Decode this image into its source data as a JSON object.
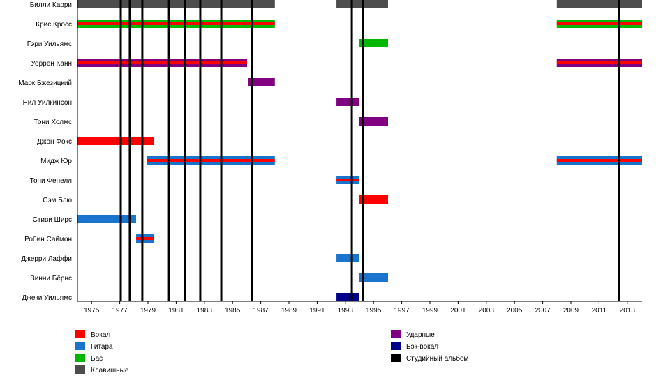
{
  "chart_data": {
    "type": "timeline",
    "title": "",
    "xlim": [
      1974.0,
      2014.05
    ],
    "x_ticks": [
      "1975",
      "1977",
      "1979",
      "1981",
      "1983",
      "1985",
      "1987",
      "1989",
      "1991",
      "1993",
      "1995",
      "1997",
      "1999",
      "2001",
      "2003",
      "2005",
      "2007",
      "2009",
      "2011",
      "2013"
    ],
    "colors": {
      "vocal": "#ff0000",
      "guitar": "#1874cd",
      "bass": "#00b800",
      "keys": "#4d4d4d",
      "drums": "#800080",
      "backing": "#00008b",
      "album": "#000000"
    },
    "members": [
      {
        "name": "Билли Карри",
        "spans": [
          {
            "from": 1974.0,
            "to": 1988.0,
            "role": "keys"
          },
          {
            "from": 1992.37,
            "to": 1996.03,
            "role": "keys"
          },
          {
            "from": 2008.0,
            "to": 2014.05,
            "role": "keys"
          }
        ]
      },
      {
        "name": "Крис Кросс",
        "spans": [
          {
            "from": 1974.0,
            "to": 1988.0,
            "role": "bass",
            "stripe": "vocal"
          },
          {
            "from": 2008.0,
            "to": 2014.05,
            "role": "bass",
            "stripe": "vocal"
          }
        ]
      },
      {
        "name": "Гэри Уильямс",
        "spans": [
          {
            "from": 1994.0,
            "to": 1996.03,
            "role": "bass"
          }
        ]
      },
      {
        "name": "Уоррен Канн",
        "spans": [
          {
            "from": 1974.0,
            "to": 1986.03,
            "role": "drums",
            "stripe": "vocal"
          },
          {
            "from": 2008.0,
            "to": 2014.05,
            "role": "drums",
            "stripe": "vocal"
          }
        ]
      },
      {
        "name": "Марк Бжезицкий",
        "spans": [
          {
            "from": 1986.13,
            "to": 1988.0,
            "role": "drums"
          }
        ]
      },
      {
        "name": "Нил Уилкинсон",
        "spans": [
          {
            "from": 1992.37,
            "to": 1994.0,
            "role": "drums"
          }
        ]
      },
      {
        "name": "Тони Холмс",
        "spans": [
          {
            "from": 1994.0,
            "to": 1996.03,
            "role": "drums"
          }
        ]
      },
      {
        "name": "Джон Фокс",
        "spans": [
          {
            "from": 1974.0,
            "to": 1979.4,
            "role": "vocal"
          }
        ]
      },
      {
        "name": "Мидж Юр",
        "spans": [
          {
            "from": 1978.95,
            "to": 1988.0,
            "role": "guitar",
            "stripe": "vocal"
          },
          {
            "from": 2008.0,
            "to": 2014.05,
            "role": "guitar",
            "stripe": "vocal"
          }
        ]
      },
      {
        "name": "Тони Фенелл",
        "spans": [
          {
            "from": 1992.37,
            "to": 1994.0,
            "role": "guitar",
            "stripe": "vocal"
          }
        ]
      },
      {
        "name": "Сэм Блю",
        "spans": [
          {
            "from": 1994.0,
            "to": 1996.03,
            "role": "vocal"
          }
        ]
      },
      {
        "name": "Стиви Ширс",
        "spans": [
          {
            "from": 1974.0,
            "to": 1978.16,
            "role": "guitar"
          }
        ]
      },
      {
        "name": "Робин Саймон",
        "spans": [
          {
            "from": 1978.16,
            "to": 1979.4,
            "role": "guitar",
            "stripe": "vocal"
          }
        ]
      },
      {
        "name": "Джерри Лаффи",
        "spans": [
          {
            "from": 1992.37,
            "to": 1994.0,
            "role": "guitar"
          }
        ]
      },
      {
        "name": "Винни Бёрнс",
        "spans": [
          {
            "from": 1994.0,
            "to": 1996.03,
            "role": "guitar"
          }
        ]
      },
      {
        "name": "Джеки Уильямс",
        "spans": [
          {
            "from": 1992.37,
            "to": 1994.0,
            "role": "backing"
          }
        ]
      }
    ],
    "albums": [
      1977.07,
      1977.71,
      1978.6,
      1980.49,
      1981.62,
      1982.71,
      1984.2,
      1986.38,
      1993.46,
      1994.25,
      2012.4
    ],
    "legend": [
      {
        "role": "vocal",
        "label": "Вокал"
      },
      {
        "role": "guitar",
        "label": "Гитара"
      },
      {
        "role": "bass",
        "label": "Бас"
      },
      {
        "role": "keys",
        "label": "Клавишные"
      },
      {
        "role": "drums",
        "label": "Ударные"
      },
      {
        "role": "backing",
        "label": "Бэк-вокал"
      },
      {
        "role": "album",
        "label": "Студийный альбом"
      }
    ],
    "legend_position": "bottom"
  }
}
